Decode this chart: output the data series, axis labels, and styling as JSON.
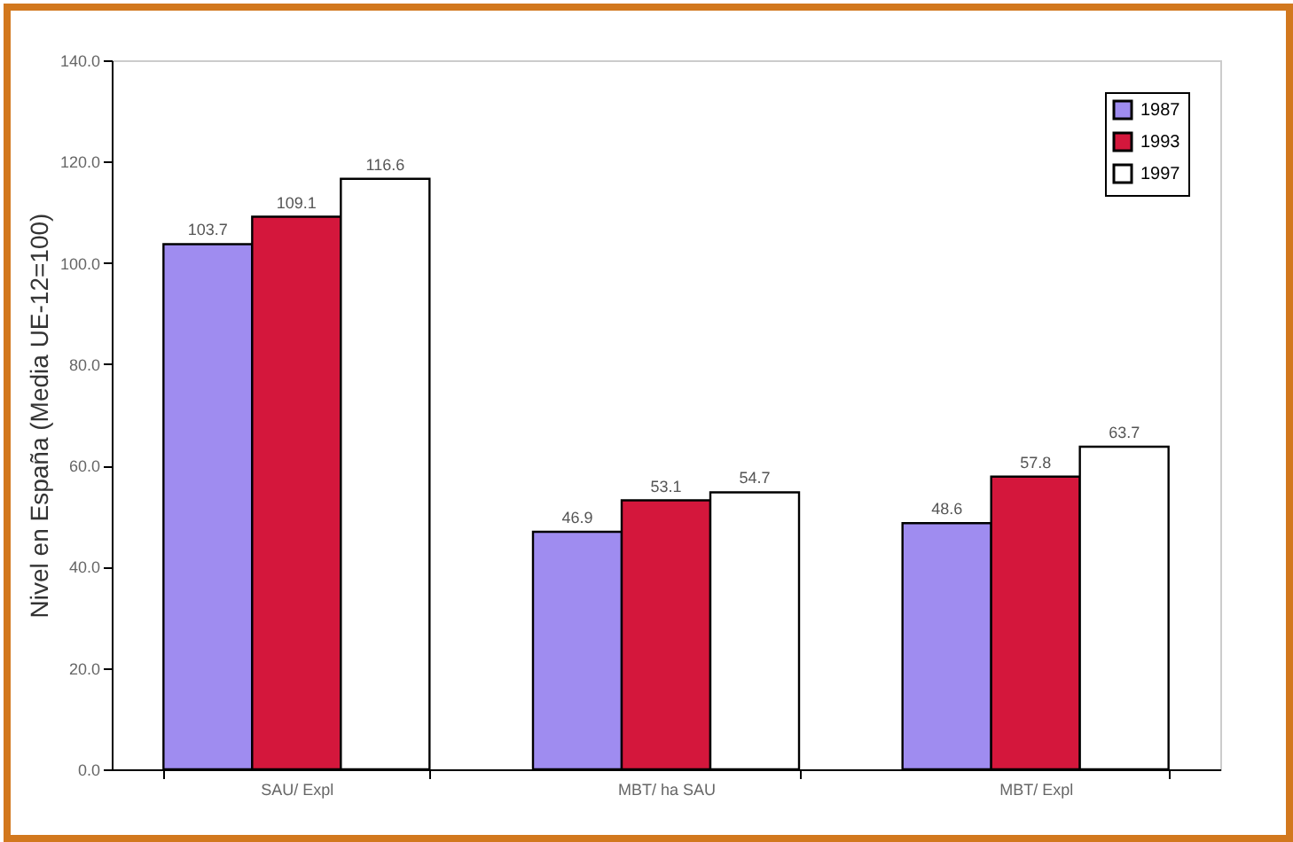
{
  "chart_data": {
    "type": "bar",
    "ylabel": "Nivel en España (Media UE-12=100)",
    "categories": [
      "SAU/ Expl",
      "MBT/ ha SAU",
      "MBT/ Expl"
    ],
    "series": [
      {
        "name": "1987",
        "color": "#9f8cf0",
        "values": [
          103.7,
          46.9,
          48.6
        ]
      },
      {
        "name": "1993",
        "color": "#d4173c",
        "values": [
          109.1,
          53.1,
          57.8
        ]
      },
      {
        "name": "1997",
        "color": "#ffffff",
        "values": [
          116.6,
          54.7,
          63.7
        ]
      }
    ],
    "ylim": [
      0,
      140
    ],
    "yticks": [
      {
        "value": 0,
        "label": "0.0"
      },
      {
        "value": 20,
        "label": "20.0"
      },
      {
        "value": 40,
        "label": "40.0"
      },
      {
        "value": 60,
        "label": "60.0"
      },
      {
        "value": 80,
        "label": "80.0"
      },
      {
        "value": 100,
        "label": "100.0"
      },
      {
        "value": 120,
        "label": "120.0"
      },
      {
        "value": 140,
        "label": "140.0"
      }
    ],
    "data_labels": true,
    "legend": "top right",
    "grid": false
  }
}
